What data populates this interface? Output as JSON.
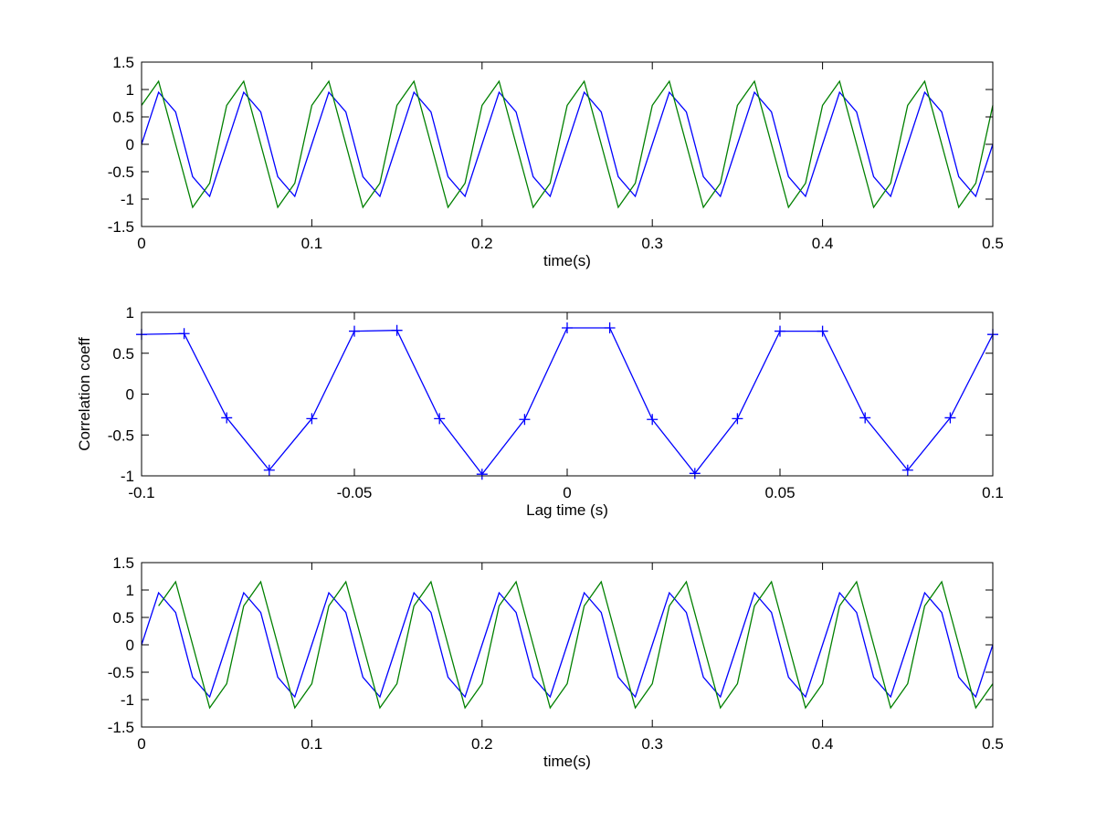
{
  "chart_data": [
    {
      "type": "line",
      "title": "",
      "xlabel": "time(s)",
      "ylabel": "",
      "xlim": [
        0,
        0.5
      ],
      "ylim": [
        -1.5,
        1.5
      ],
      "xticks": [
        0,
        0.1,
        0.2,
        0.3,
        0.4,
        0.5
      ],
      "xtick_labels": [
        "0",
        "0.1",
        "0.2",
        "0.3",
        "0.4",
        "0.5"
      ],
      "yticks": [
        -1.5,
        -1,
        -0.5,
        0,
        0.5,
        1,
        1.5
      ],
      "ytick_labels": [
        "-1.5",
        "-1",
        "-0.5",
        "0",
        "0.5",
        "1",
        "1.5"
      ],
      "grid": false,
      "series": [
        {
          "color": "#0000ff",
          "marker": "none",
          "x": [
            0,
            0.01,
            0.02,
            0.03,
            0.04,
            0.05,
            0.06,
            0.07,
            0.08,
            0.09,
            0.1,
            0.11,
            0.12,
            0.13,
            0.14,
            0.15,
            0.16,
            0.17,
            0.18,
            0.19,
            0.2,
            0.21,
            0.22,
            0.23,
            0.24,
            0.25,
            0.26,
            0.27,
            0.28,
            0.29,
            0.3,
            0.31,
            0.32,
            0.33,
            0.34,
            0.35,
            0.36,
            0.37,
            0.38,
            0.39,
            0.4,
            0.41,
            0.42,
            0.43,
            0.44,
            0.45,
            0.46,
            0.47,
            0.48,
            0.49,
            0.5
          ],
          "y": [
            0,
            0.95,
            0.59,
            -0.59,
            -0.95,
            0,
            0.95,
            0.59,
            -0.59,
            -0.95,
            0,
            0.95,
            0.59,
            -0.59,
            -0.95,
            0,
            0.95,
            0.59,
            -0.59,
            -0.95,
            0,
            0.95,
            0.59,
            -0.59,
            -0.95,
            0,
            0.95,
            0.59,
            -0.59,
            -0.95,
            0,
            0.95,
            0.59,
            -0.59,
            -0.95,
            0,
            0.95,
            0.59,
            -0.59,
            -0.95,
            0,
            0.95,
            0.59,
            -0.59,
            -0.95,
            0,
            0.95,
            0.59,
            -0.59,
            -0.95,
            0
          ]
        },
        {
          "color": "#008000",
          "marker": "none",
          "x": [
            0,
            0.01,
            0.02,
            0.03,
            0.04,
            0.05,
            0.06,
            0.07,
            0.08,
            0.09,
            0.1,
            0.11,
            0.12,
            0.13,
            0.14,
            0.15,
            0.16,
            0.17,
            0.18,
            0.19,
            0.2,
            0.21,
            0.22,
            0.23,
            0.24,
            0.25,
            0.26,
            0.27,
            0.28,
            0.29,
            0.3,
            0.31,
            0.32,
            0.33,
            0.34,
            0.35,
            0.36,
            0.37,
            0.38,
            0.39,
            0.4,
            0.41,
            0.42,
            0.43,
            0.44,
            0.45,
            0.46,
            0.47,
            0.48,
            0.49,
            0.5
          ],
          "y": [
            0.71,
            1.15,
            0,
            -1.15,
            -0.71,
            0.71,
            1.15,
            0,
            -1.15,
            -0.71,
            0.71,
            1.15,
            0,
            -1.15,
            -0.71,
            0.71,
            1.15,
            0,
            -1.15,
            -0.71,
            0.71,
            1.15,
            0,
            -1.15,
            -0.71,
            0.71,
            1.15,
            0,
            -1.15,
            -0.71,
            0.71,
            1.15,
            0,
            -1.15,
            -0.71,
            0.71,
            1.15,
            0,
            -1.15,
            -0.71,
            0.71,
            1.15,
            0,
            -1.15,
            -0.71,
            0.71,
            1.15,
            0,
            -1.15,
            -0.71,
            0.71
          ]
        }
      ]
    },
    {
      "type": "line",
      "title": "",
      "xlabel": "Lag time (s)",
      "ylabel": "Correlation coeff",
      "xlim": [
        -0.1,
        0.1
      ],
      "ylim": [
        -1,
        1
      ],
      "xticks": [
        -0.1,
        -0.05,
        0,
        0.05,
        0.1
      ],
      "xtick_labels": [
        "-0.1",
        "-0.05",
        "0",
        "0.05",
        "0.1"
      ],
      "yticks": [
        -1,
        -0.5,
        0,
        0.5,
        1
      ],
      "ytick_labels": [
        "-1",
        "-0.5",
        "0",
        "0.5",
        "1"
      ],
      "grid": false,
      "series": [
        {
          "color": "#0000ff",
          "marker": "+",
          "x": [
            -0.1,
            -0.09,
            -0.08,
            -0.07,
            -0.06,
            -0.05,
            -0.04,
            -0.03,
            -0.02,
            -0.01,
            0,
            0.01,
            0.02,
            0.03,
            0.04,
            0.05,
            0.06,
            0.07,
            0.08,
            0.09,
            0.1
          ],
          "y": [
            0.73,
            0.74,
            -0.29,
            -0.93,
            -0.3,
            0.77,
            0.78,
            -0.3,
            -0.98,
            -0.31,
            0.81,
            0.81,
            -0.31,
            -0.97,
            -0.3,
            0.77,
            0.77,
            -0.29,
            -0.93,
            -0.29,
            0.73
          ]
        }
      ]
    },
    {
      "type": "line",
      "title": "",
      "xlabel": "time(s)",
      "ylabel": "",
      "xlim": [
        0,
        0.5
      ],
      "ylim": [
        -1.5,
        1.5
      ],
      "xticks": [
        0,
        0.1,
        0.2,
        0.3,
        0.4,
        0.5
      ],
      "xtick_labels": [
        "0",
        "0.1",
        "0.2",
        "0.3",
        "0.4",
        "0.5"
      ],
      "yticks": [
        -1.5,
        -1,
        -0.5,
        0,
        0.5,
        1,
        1.5
      ],
      "ytick_labels": [
        "-1.5",
        "-1",
        "-0.5",
        "0",
        "0.5",
        "1",
        "1.5"
      ],
      "grid": false,
      "series": [
        {
          "color": "#0000ff",
          "marker": "none",
          "x": [
            0,
            0.01,
            0.02,
            0.03,
            0.04,
            0.05,
            0.06,
            0.07,
            0.08,
            0.09,
            0.1,
            0.11,
            0.12,
            0.13,
            0.14,
            0.15,
            0.16,
            0.17,
            0.18,
            0.19,
            0.2,
            0.21,
            0.22,
            0.23,
            0.24,
            0.25,
            0.26,
            0.27,
            0.28,
            0.29,
            0.3,
            0.31,
            0.32,
            0.33,
            0.34,
            0.35,
            0.36,
            0.37,
            0.38,
            0.39,
            0.4,
            0.41,
            0.42,
            0.43,
            0.44,
            0.45,
            0.46,
            0.47,
            0.48,
            0.49,
            0.5
          ],
          "y": [
            0,
            0.95,
            0.59,
            -0.59,
            -0.95,
            0,
            0.95,
            0.59,
            -0.59,
            -0.95,
            0,
            0.95,
            0.59,
            -0.59,
            -0.95,
            0,
            0.95,
            0.59,
            -0.59,
            -0.95,
            0,
            0.95,
            0.59,
            -0.59,
            -0.95,
            0,
            0.95,
            0.59,
            -0.59,
            -0.95,
            0,
            0.95,
            0.59,
            -0.59,
            -0.95,
            0,
            0.95,
            0.59,
            -0.59,
            -0.95,
            0,
            0.95,
            0.59,
            -0.59,
            -0.95,
            0,
            0.95,
            0.59,
            -0.59,
            -0.95,
            0
          ]
        },
        {
          "color": "#008000",
          "marker": "none",
          "x": [
            0.01,
            0.02,
            0.03,
            0.04,
            0.05,
            0.06,
            0.07,
            0.08,
            0.09,
            0.1,
            0.11,
            0.12,
            0.13,
            0.14,
            0.15,
            0.16,
            0.17,
            0.18,
            0.19,
            0.2,
            0.21,
            0.22,
            0.23,
            0.24,
            0.25,
            0.26,
            0.27,
            0.28,
            0.29,
            0.3,
            0.31,
            0.32,
            0.33,
            0.34,
            0.35,
            0.36,
            0.37,
            0.38,
            0.39,
            0.4,
            0.41,
            0.42,
            0.43,
            0.44,
            0.45,
            0.46,
            0.47,
            0.48,
            0.49,
            0.5
          ],
          "y": [
            0.71,
            1.15,
            0,
            -1.15,
            -0.71,
            0.71,
            1.15,
            0,
            -1.15,
            -0.71,
            0.71,
            1.15,
            0,
            -1.15,
            -0.71,
            0.71,
            1.15,
            0,
            -1.15,
            -0.71,
            0.71,
            1.15,
            0,
            -1.15,
            -0.71,
            0.71,
            1.15,
            0,
            -1.15,
            -0.71,
            0.71,
            1.15,
            0,
            -1.15,
            -0.71,
            0.71,
            1.15,
            0,
            -1.15,
            -0.71,
            0.71,
            1.15,
            0,
            -1.15,
            -0.71,
            0.71,
            1.15,
            0,
            -1.15,
            -0.71
          ]
        }
      ]
    }
  ]
}
